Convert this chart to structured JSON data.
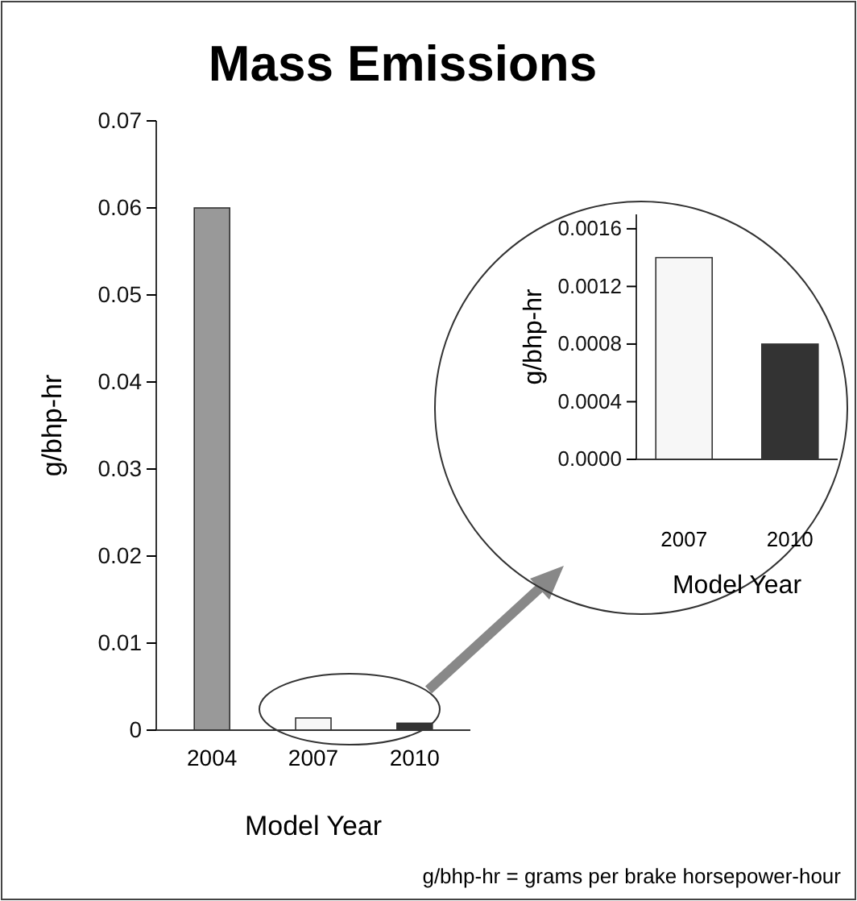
{
  "chart_data": [
    {
      "type": "bar",
      "title": "Mass Emissions",
      "xlabel": "Model Year",
      "ylabel": "g/bhp-hr",
      "categories": [
        "2004",
        "2007",
        "2010"
      ],
      "values": [
        0.06,
        0.0014,
        0.0008
      ],
      "colors": [
        "#999999",
        "#f7f7f7",
        "#333333"
      ],
      "ylim": [
        0,
        0.07
      ],
      "yticks": [
        0,
        0.01,
        0.02,
        0.03,
        0.04,
        0.05,
        0.06,
        0.07
      ],
      "grid": false,
      "annotations": [
        "g/bhp-hr = grams per brake horsepower-hour"
      ]
    },
    {
      "type": "bar",
      "xlabel": "Model Year",
      "ylabel": "g/bhp-hr",
      "categories": [
        "2007",
        "2010"
      ],
      "values": [
        0.0014,
        0.0008
      ],
      "colors": [
        "#f7f7f7",
        "#333333"
      ],
      "ylim": [
        0,
        0.0017
      ],
      "yticks": [
        {
          "value": 0,
          "label": "0.0000"
        },
        0.0004,
        0.0008,
        0.0012,
        0.0016
      ],
      "grid": false
    }
  ]
}
